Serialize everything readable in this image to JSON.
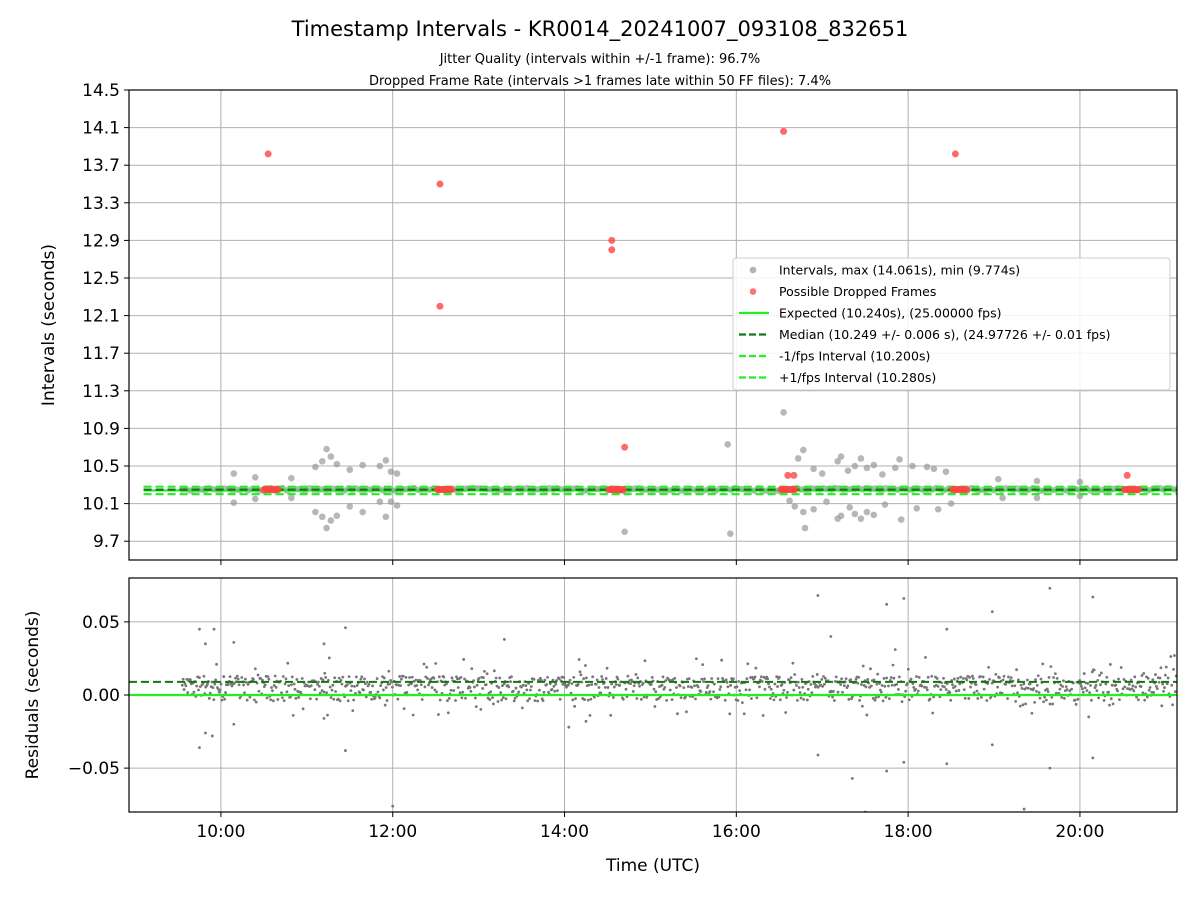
{
  "chart_data": [
    {
      "type": "scatter",
      "title": "Timestamp Intervals - KR0014_20241007_093108_832651",
      "subtitle_lines": [
        "Jitter Quality (intervals within +/-1 frame): 96.7%",
        "Dropped Frame Rate (intervals >1 frames late within 50 FF files): 7.4%"
      ],
      "ylabel": "Intervals (seconds)",
      "xlim": [
        8.93,
        21.13
      ],
      "ylim": [
        9.5,
        14.5
      ],
      "yticks": [
        "9.7",
        "10.1",
        "10.5",
        "10.9",
        "11.3",
        "11.7",
        "12.1",
        "12.5",
        "12.9",
        "13.3",
        "13.7",
        "14.1",
        "14.5"
      ],
      "grid": true,
      "legend_position": "center-right",
      "legend": [
        {
          "label": "Intervals, max (14.061s), min (9.774s)",
          "kind": "marker",
          "color": "#999999"
        },
        {
          "label": "Possible Dropped Frames",
          "kind": "marker",
          "color": "#ff4444"
        },
        {
          "label": "Expected (10.240s), (25.00000 fps)",
          "kind": "line",
          "color": "#22ee22",
          "dash": "solid"
        },
        {
          "label": "Median (10.249 +/- 0.006 s), (24.97726 +/- 0.01 fps)",
          "kind": "line",
          "color": "#117711",
          "dash": "dashed"
        },
        {
          "label": "-1/fps Interval (10.200s)",
          "kind": "line",
          "color": "#22ee22",
          "dash": "dashed"
        },
        {
          "label": "+1/fps Interval (10.280s)",
          "kind": "line",
          "color": "#22ee22",
          "dash": "dashed"
        }
      ],
      "lines": {
        "expected": 10.24,
        "median": 10.249,
        "minus_one_fps": 10.2,
        "plus_one_fps": 10.28
      },
      "band": {
        "x_start": 9.55,
        "x_end": 21.13,
        "center": 10.25
      },
      "outliers_dropped": [
        {
          "x": 10.55,
          "y": 13.82
        },
        {
          "x": 12.55,
          "y": 13.5
        },
        {
          "x": 12.55,
          "y": 12.2
        },
        {
          "x": 14.55,
          "y": 12.9
        },
        {
          "x": 14.55,
          "y": 12.8
        },
        {
          "x": 14.7,
          "y": 10.7
        },
        {
          "x": 16.55,
          "y": 14.06
        },
        {
          "x": 16.6,
          "y": 10.4
        },
        {
          "x": 16.67,
          "y": 10.4
        },
        {
          "x": 18.55,
          "y": 13.82
        },
        {
          "x": 20.55,
          "y": 10.4
        }
      ],
      "dropped_clusters": [
        {
          "x_start": 10.5,
          "x_end": 10.68,
          "y": 10.25
        },
        {
          "x_start": 12.52,
          "x_end": 12.7,
          "y": 10.25
        },
        {
          "x_start": 14.52,
          "x_end": 14.7,
          "y": 10.25
        },
        {
          "x_start": 16.52,
          "x_end": 16.7,
          "y": 10.25
        },
        {
          "x_start": 18.52,
          "x_end": 18.7,
          "y": 10.25
        },
        {
          "x_start": 20.52,
          "x_end": 20.7,
          "y": 10.25
        }
      ],
      "outliers_intervals": [
        {
          "x": 10.15,
          "y": 10.42
        },
        {
          "x": 10.15,
          "y": 10.11
        },
        {
          "x": 10.4,
          "y": 10.38
        },
        {
          "x": 10.4,
          "y": 10.15
        },
        {
          "x": 10.82,
          "y": 10.37
        },
        {
          "x": 10.82,
          "y": 10.16
        },
        {
          "x": 11.1,
          "y": 10.49
        },
        {
          "x": 11.1,
          "y": 10.01
        },
        {
          "x": 11.18,
          "y": 10.55
        },
        {
          "x": 11.18,
          "y": 9.96
        },
        {
          "x": 11.23,
          "y": 10.68
        },
        {
          "x": 11.23,
          "y": 9.84
        },
        {
          "x": 11.28,
          "y": 10.6
        },
        {
          "x": 11.28,
          "y": 9.92
        },
        {
          "x": 11.35,
          "y": 10.52
        },
        {
          "x": 11.35,
          "y": 9.97
        },
        {
          "x": 11.5,
          "y": 10.46
        },
        {
          "x": 11.5,
          "y": 10.07
        },
        {
          "x": 11.65,
          "y": 10.51
        },
        {
          "x": 11.65,
          "y": 10.01
        },
        {
          "x": 11.85,
          "y": 10.5
        },
        {
          "x": 11.85,
          "y": 10.12
        },
        {
          "x": 11.92,
          "y": 10.56
        },
        {
          "x": 11.92,
          "y": 9.96
        },
        {
          "x": 11.98,
          "y": 10.44
        },
        {
          "x": 11.98,
          "y": 10.12
        },
        {
          "x": 12.05,
          "y": 10.42
        },
        {
          "x": 12.05,
          "y": 10.08
        },
        {
          "x": 14.7,
          "y": 9.8
        },
        {
          "x": 15.9,
          "y": 10.73
        },
        {
          "x": 15.93,
          "y": 9.78
        },
        {
          "x": 16.55,
          "y": 11.07
        },
        {
          "x": 16.62,
          "y": 10.13
        },
        {
          "x": 16.68,
          "y": 10.07
        },
        {
          "x": 16.72,
          "y": 10.58
        },
        {
          "x": 16.78,
          "y": 10.67
        },
        {
          "x": 16.78,
          "y": 10.01
        },
        {
          "x": 16.8,
          "y": 9.84
        },
        {
          "x": 16.9,
          "y": 10.47
        },
        {
          "x": 16.9,
          "y": 10.04
        },
        {
          "x": 17.0,
          "y": 10.42
        },
        {
          "x": 17.05,
          "y": 10.12
        },
        {
          "x": 17.18,
          "y": 10.55
        },
        {
          "x": 17.18,
          "y": 9.94
        },
        {
          "x": 17.22,
          "y": 10.6
        },
        {
          "x": 17.22,
          "y": 9.97
        },
        {
          "x": 17.3,
          "y": 10.45
        },
        {
          "x": 17.32,
          "y": 10.06
        },
        {
          "x": 17.38,
          "y": 10.5
        },
        {
          "x": 17.38,
          "y": 9.99
        },
        {
          "x": 17.45,
          "y": 10.58
        },
        {
          "x": 17.45,
          "y": 9.94
        },
        {
          "x": 17.52,
          "y": 10.48
        },
        {
          "x": 17.52,
          "y": 10.01
        },
        {
          "x": 17.6,
          "y": 10.51
        },
        {
          "x": 17.6,
          "y": 9.98
        },
        {
          "x": 17.7,
          "y": 10.41
        },
        {
          "x": 17.73,
          "y": 10.09
        },
        {
          "x": 17.85,
          "y": 10.48
        },
        {
          "x": 17.9,
          "y": 10.57
        },
        {
          "x": 17.92,
          "y": 9.93
        },
        {
          "x": 18.05,
          "y": 10.5
        },
        {
          "x": 18.1,
          "y": 10.05
        },
        {
          "x": 18.22,
          "y": 10.49
        },
        {
          "x": 18.3,
          "y": 10.47
        },
        {
          "x": 18.35,
          "y": 10.04
        },
        {
          "x": 18.44,
          "y": 10.44
        },
        {
          "x": 18.5,
          "y": 10.1
        },
        {
          "x": 19.05,
          "y": 10.36
        },
        {
          "x": 19.1,
          "y": 10.16
        },
        {
          "x": 19.5,
          "y": 10.34
        },
        {
          "x": 19.5,
          "y": 10.16
        },
        {
          "x": 20.0,
          "y": 10.33
        },
        {
          "x": 20.0,
          "y": 10.18
        }
      ]
    },
    {
      "type": "scatter",
      "title": "",
      "xlabel": "Time (UTC)",
      "ylabel": "Residuals (seconds)",
      "xlim": [
        8.93,
        21.13
      ],
      "ylim": [
        -0.08,
        0.08
      ],
      "yticks": [
        {
          "value": 0.05,
          "label": "0.05"
        },
        {
          "value": 0.0,
          "label": "0.00"
        },
        {
          "value": -0.05,
          "label": "−0.05"
        }
      ],
      "xticks": [
        {
          "value": 10,
          "label": "10:00"
        },
        {
          "value": 12,
          "label": "12:00"
        },
        {
          "value": 14,
          "label": "14:00"
        },
        {
          "value": 16,
          "label": "16:00"
        },
        {
          "value": 18,
          "label": "18:00"
        },
        {
          "value": 20,
          "label": "20:00"
        }
      ],
      "grid": true,
      "lines": {
        "zero": 0.0,
        "median_offset": 0.009
      },
      "band": {
        "x_start": 9.55,
        "x_end": 21.13,
        "upper": 0.009,
        "lower": 0.0
      },
      "outliers": [
        {
          "x": 9.75,
          "y": 0.045
        },
        {
          "x": 9.82,
          "y": 0.035
        },
        {
          "x": 9.92,
          "y": 0.045
        },
        {
          "x": 9.75,
          "y": -0.036
        },
        {
          "x": 9.82,
          "y": -0.026
        },
        {
          "x": 9.9,
          "y": -0.028
        },
        {
          "x": 10.15,
          "y": 0.036
        },
        {
          "x": 10.15,
          "y": -0.02
        },
        {
          "x": 11.2,
          "y": 0.035
        },
        {
          "x": 11.45,
          "y": 0.046
        },
        {
          "x": 11.45,
          "y": -0.038
        },
        {
          "x": 11.2,
          "y": -0.016
        },
        {
          "x": 12.0,
          "y": -0.076
        },
        {
          "x": 13.3,
          "y": 0.038
        },
        {
          "x": 14.05,
          "y": -0.022
        },
        {
          "x": 14.25,
          "y": -0.018
        },
        {
          "x": 16.95,
          "y": 0.068
        },
        {
          "x": 16.95,
          "y": -0.041
        },
        {
          "x": 17.1,
          "y": 0.04
        },
        {
          "x": 17.35,
          "y": -0.057
        },
        {
          "x": 17.5,
          "y": -0.08
        },
        {
          "x": 17.75,
          "y": 0.062
        },
        {
          "x": 17.85,
          "y": 0.031
        },
        {
          "x": 17.75,
          "y": -0.052
        },
        {
          "x": 17.95,
          "y": 0.066
        },
        {
          "x": 17.95,
          "y": -0.046
        },
        {
          "x": 18.45,
          "y": 0.045
        },
        {
          "x": 18.45,
          "y": -0.047
        },
        {
          "x": 18.98,
          "y": 0.057
        },
        {
          "x": 18.98,
          "y": -0.034
        },
        {
          "x": 19.35,
          "y": -0.078
        },
        {
          "x": 19.65,
          "y": 0.073
        },
        {
          "x": 19.65,
          "y": -0.05
        },
        {
          "x": 20.15,
          "y": 0.067
        },
        {
          "x": 20.15,
          "y": -0.043
        }
      ]
    }
  ]
}
